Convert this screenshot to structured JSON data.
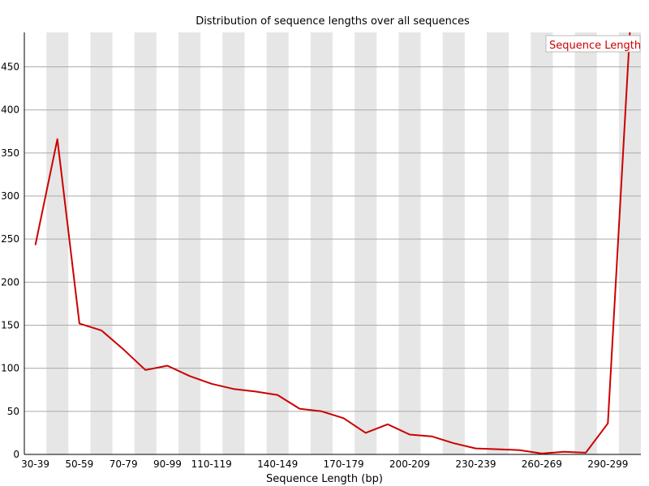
{
  "chart_data": {
    "type": "line",
    "title": "Distribution of sequence lengths over all sequences",
    "xlabel": "Sequence Length (bp)",
    "ylabel": "",
    "categories": [
      "30-39",
      "40-49",
      "50-59",
      "60-69",
      "70-79",
      "80-89",
      "90-99",
      "100-109",
      "110-119",
      "120-129",
      "130-139",
      "140-149",
      "150-159",
      "160-169",
      "170-179",
      "180-189",
      "190-199",
      "200-209",
      "210-219",
      "220-229",
      "230-239",
      "240-249",
      "250-259",
      "260-269",
      "270-279",
      "280-289",
      "290-299",
      "300-301"
    ],
    "x_tick_labels": [
      "30-39",
      "50-59",
      "70-79",
      "90-99",
      "110-119",
      "140-149",
      "170-179",
      "200-209",
      "230-239",
      "260-269",
      "290-299"
    ],
    "series": [
      {
        "name": "Sequence Length",
        "color": "#cc0000",
        "values": [
          243,
          366,
          152,
          144,
          122,
          98,
          103,
          91,
          82,
          76,
          73,
          69,
          53,
          50,
          42,
          25,
          35,
          23,
          21,
          13,
          7,
          6,
          5,
          1,
          3,
          2,
          36,
          490
        ]
      }
    ],
    "ylim": [
      0,
      490
    ],
    "y_ticks": [
      0,
      50,
      100,
      150,
      200,
      250,
      300,
      350,
      400,
      450
    ],
    "grid": true,
    "legend_position": "top-right",
    "band_color": "#e6e6e6",
    "grid_color": "#aaaaaa"
  }
}
